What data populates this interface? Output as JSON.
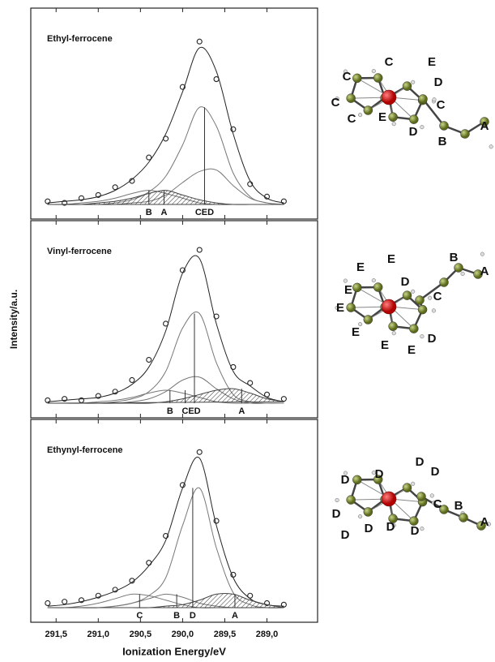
{
  "chart_data": [
    {
      "type": "line",
      "title": "Ethyl-ferrocene",
      "xlim": [
        291.8,
        288.4
      ],
      "ylim": [
        0,
        115
      ],
      "x": [
        291.6,
        291.4,
        291.2,
        291.0,
        290.8,
        290.6,
        290.4,
        290.2,
        290.0,
        289.8,
        289.6,
        289.4,
        289.2,
        289.0,
        288.8
      ],
      "series": [
        {
          "color": "#222222",
          "marker": "circle",
          "values": [
            2,
            1,
            4,
            6,
            11,
            15,
            30,
            42,
            75,
            104,
            80,
            48,
            13,
            5,
            2
          ]
        },
        {
          "color": "#222222",
          "values": [
            1,
            2,
            3,
            5,
            9,
            16,
            27,
            45,
            72,
            100,
            85,
            45,
            15,
            4,
            1
          ]
        },
        {
          "color": "#777777",
          "values": [
            0,
            0,
            0,
            0,
            1,
            3,
            8,
            18,
            38,
            62,
            50,
            20,
            5,
            1,
            0
          ]
        },
        {
          "color": "#777777",
          "values": [
            0,
            0,
            0,
            0,
            0,
            1,
            2,
            6,
            14,
            21,
            22,
            12,
            4,
            1,
            0
          ]
        },
        {
          "color": "#777777",
          "values": [
            0,
            0,
            1,
            2,
            4,
            7,
            9,
            7,
            4,
            1,
            0,
            0,
            0,
            0,
            0
          ]
        },
        {
          "color": "#444444",
          "fill": "hatch",
          "values": [
            0,
            0,
            0,
            1,
            2,
            4,
            7,
            9,
            6,
            3,
            1,
            0,
            0,
            0,
            0
          ]
        }
      ],
      "peaks": [
        {
          "label": "B",
          "x": 290.4,
          "height": 9
        },
        {
          "label": "A",
          "x": 290.22,
          "height": 9
        },
        {
          "label": "CED",
          "x": 289.74,
          "height": 62
        }
      ]
    },
    {
      "type": "line",
      "title": "Vinyl-ferrocene",
      "ylabel": "Intensity/a.u.",
      "xlim": [
        291.8,
        288.4
      ],
      "ylim": [
        0,
        115
      ],
      "x": [
        291.6,
        291.4,
        291.2,
        291.0,
        290.8,
        290.6,
        290.4,
        290.2,
        290.0,
        289.8,
        289.6,
        289.4,
        289.2,
        289.0,
        288.8
      ],
      "series": [
        {
          "color": "#222222",
          "marker": "circle",
          "values": [
            2,
            3,
            2,
            5,
            8,
            16,
            30,
            55,
            92,
            106,
            60,
            25,
            14,
            6,
            3
          ]
        },
        {
          "color": "#222222",
          "values": [
            1,
            2,
            3,
            4,
            7,
            13,
            25,
            50,
            90,
            100,
            55,
            22,
            12,
            4,
            1
          ]
        },
        {
          "color": "#777777",
          "values": [
            0,
            0,
            0,
            0,
            1,
            3,
            8,
            22,
            52,
            62,
            28,
            6,
            1,
            0,
            0
          ]
        },
        {
          "color": "#777777",
          "values": [
            0,
            0,
            0,
            0,
            0,
            1,
            3,
            8,
            16,
            18,
            10,
            3,
            0,
            0,
            0
          ]
        },
        {
          "color": "#777777",
          "values": [
            0,
            0,
            0,
            1,
            2,
            4,
            7,
            9,
            7,
            4,
            1,
            0,
            0,
            0,
            0
          ]
        },
        {
          "color": "#444444",
          "fill": "hatch",
          "values": [
            0,
            0,
            0,
            0,
            0,
            0,
            0,
            1,
            3,
            6,
            9,
            10,
            7,
            3,
            1
          ]
        }
      ],
      "peaks": [
        {
          "label": "B",
          "x": 290.15,
          "height": 9
        },
        {
          "label": "C",
          "x": 289.97,
          "height": 9
        },
        {
          "label": "ED",
          "x": 289.86,
          "height": 62
        },
        {
          "label": "A",
          "x": 289.3,
          "height": 10
        }
      ]
    },
    {
      "type": "line",
      "title": "Ethynyl-ferrocene",
      "xlabel": "Ionization Energy/eV",
      "xlim": [
        291.8,
        288.4
      ],
      "ylim": [
        0,
        115
      ],
      "xticks": [
        {
          "value": 291.5,
          "label": "291,5"
        },
        {
          "value": 291.0,
          "label": "291,0"
        },
        {
          "value": 290.5,
          "label": "290,5"
        },
        {
          "value": 290.0,
          "label": "290,0"
        },
        {
          "value": 289.5,
          "label": "289,5"
        },
        {
          "value": 289.0,
          "label": "289,0"
        }
      ],
      "x": [
        291.6,
        291.4,
        291.2,
        291.0,
        290.8,
        290.6,
        290.4,
        290.2,
        290.0,
        289.8,
        289.6,
        289.4,
        289.2,
        289.0,
        288.8
      ],
      "series": [
        {
          "color": "#222222",
          "marker": "circle",
          "values": [
            3,
            4,
            5,
            8,
            12,
            18,
            30,
            48,
            82,
            104,
            58,
            22,
            8,
            3,
            2
          ]
        },
        {
          "color": "#222222",
          "values": [
            1,
            2,
            4,
            7,
            11,
            17,
            28,
            45,
            80,
            100,
            55,
            20,
            6,
            2,
            1
          ]
        },
        {
          "color": "#777777",
          "values": [
            0,
            0,
            0,
            0,
            1,
            3,
            8,
            20,
            55,
            80,
            40,
            10,
            2,
            0,
            0
          ]
        },
        {
          "color": "#777777",
          "values": [
            0,
            0,
            1,
            3,
            6,
            9,
            8,
            5,
            2,
            0,
            0,
            0,
            0,
            0,
            0
          ]
        },
        {
          "color": "#777777",
          "values": [
            0,
            0,
            0,
            0,
            1,
            3,
            6,
            9,
            7,
            3,
            1,
            0,
            0,
            0,
            0
          ]
        },
        {
          "color": "#444444",
          "fill": "hatch",
          "values": [
            0,
            0,
            0,
            0,
            0,
            0,
            0,
            1,
            2,
            5,
            9,
            9,
            5,
            2,
            0
          ]
        }
      ],
      "peaks": [
        {
          "label": "C",
          "x": 290.51,
          "height": 9
        },
        {
          "label": "B",
          "x": 290.07,
          "height": 9
        },
        {
          "label": "D",
          "x": 289.88,
          "height": 80
        },
        {
          "label": "A",
          "x": 289.38,
          "height": 9
        }
      ]
    }
  ],
  "molecules": [
    [
      "C",
      "C",
      "E",
      "C",
      "D",
      "C",
      "C",
      "E",
      "D",
      "B",
      "A"
    ],
    [
      "E",
      "E",
      "B",
      "A",
      "D",
      "C",
      "E",
      "E",
      "E",
      "D",
      "E",
      "E"
    ],
    [
      "D",
      "D",
      "D",
      "D",
      "C",
      "B",
      "A",
      "D",
      "D",
      "D",
      "D",
      "D"
    ]
  ]
}
